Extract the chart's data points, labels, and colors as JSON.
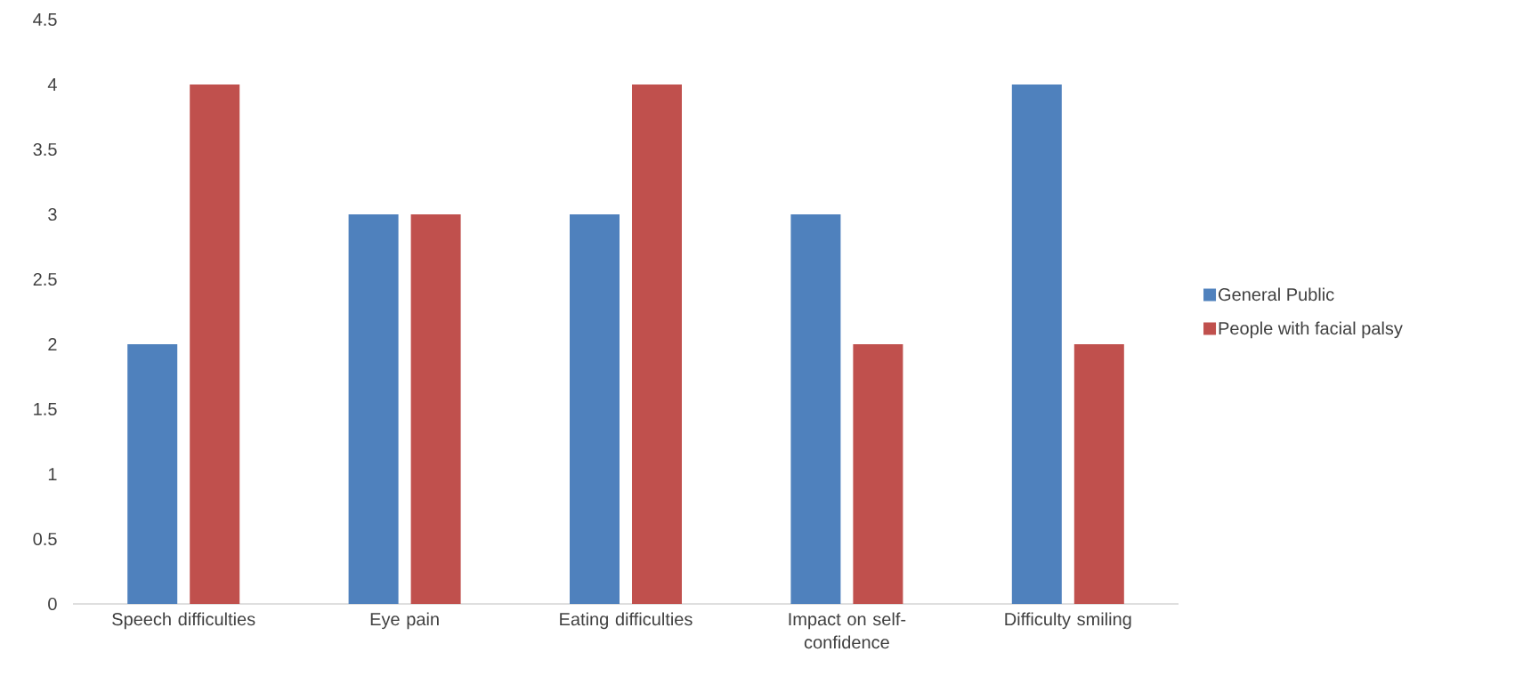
{
  "chart_data": {
    "type": "bar",
    "categories": [
      "Speech difficulties",
      "Eye pain",
      "Eating difficulties",
      "Impact on self-confidence",
      "Difficulty smiling"
    ],
    "series": [
      {
        "name": "General Public",
        "color": "#4f81bd",
        "values": [
          2,
          3,
          3,
          3,
          4
        ]
      },
      {
        "name": "People with facial palsy",
        "color": "#c0504d",
        "values": [
          4,
          3,
          4,
          2,
          2
        ]
      }
    ],
    "ylim": [
      0,
      4.5
    ],
    "yticks": [
      0,
      0.5,
      1,
      1.5,
      2,
      2.5,
      3,
      3.5,
      4,
      4.5
    ],
    "legend": "right"
  }
}
